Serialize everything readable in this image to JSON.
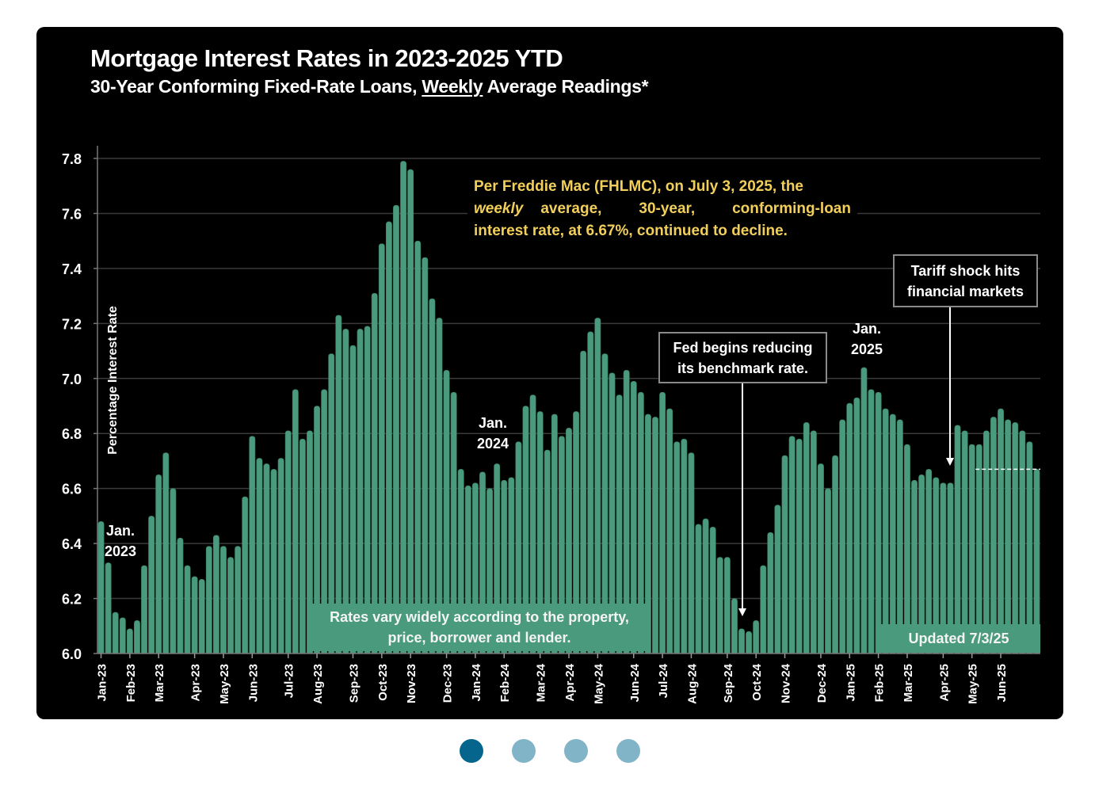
{
  "page": {
    "title": "Mortgage Interest Rates in 2023-2025 YTD",
    "subtitle_before": "30-Year Conforming Fixed-Rate Loans, ",
    "subtitle_underlined": "Weekly",
    "subtitle_after": " Average Readings*",
    "y_axis_label": "Percentage Interest Rate",
    "note": {
      "line1": "Per Freddie Mac (FHLMC), on July 3, 2025, the",
      "italic_word": "weekly",
      "line2_rest": " average, 30-year, conforming-loan",
      "line3": "interest rate, at 6.67%, continued to decline."
    },
    "callouts": {
      "fed": [
        "Fed begins reducing",
        "its benchmark rate."
      ],
      "tariff": [
        "Tariff shock hits",
        "financial markets"
      ]
    },
    "year_labels": {
      "y2023": [
        "Jan.",
        "2023"
      ],
      "y2024": [
        "Jan.",
        "2024"
      ],
      "y2025": [
        "Jan.",
        "2025"
      ]
    },
    "banner_rates": [
      "Rates vary widely according to the property,",
      "price, borrower and lender."
    ],
    "banner_updated": "Updated 7/3/25",
    "colors": {
      "bar": "#4a9a7e",
      "background": "#000000",
      "note_text": "#f2cf5b",
      "grid": "#3a3a3a",
      "dot_active": "#05658d",
      "dot_inactive": "#82b4c8"
    },
    "pagination": {
      "count": 4,
      "active_index": 0
    }
  },
  "chart_data": {
    "type": "bar",
    "title": "Mortgage Interest Rates in 2023-2025 YTD",
    "subtitle": "30-Year Conforming Fixed-Rate Loans, Weekly Average Readings*",
    "xlabel": "",
    "ylabel": "Percentage Interest Rate",
    "ylim": [
      6.0,
      7.8
    ],
    "yticks": [
      "6.0",
      "6.2",
      "6.4",
      "6.6",
      "6.8",
      "7.0",
      "7.2",
      "7.4",
      "7.6",
      "7.8"
    ],
    "grid": true,
    "legend": "none",
    "month_ticks": [
      {
        "label": "Jan-23",
        "week_index": 0
      },
      {
        "label": "Feb-23",
        "week_index": 4
      },
      {
        "label": "Mar-23",
        "week_index": 8
      },
      {
        "label": "Apr-23",
        "week_index": 13
      },
      {
        "label": "May-23",
        "week_index": 17
      },
      {
        "label": "Jun-23",
        "week_index": 21
      },
      {
        "label": "Jul-23",
        "week_index": 26
      },
      {
        "label": "Aug-23",
        "week_index": 30
      },
      {
        "label": "Sep-23",
        "week_index": 35
      },
      {
        "label": "Oct-23",
        "week_index": 39
      },
      {
        "label": "Nov-23",
        "week_index": 43
      },
      {
        "label": "Dec-23",
        "week_index": 48
      },
      {
        "label": "Jan-24",
        "week_index": 52
      },
      {
        "label": "Feb-24",
        "week_index": 56
      },
      {
        "label": "Mar-24",
        "week_index": 61
      },
      {
        "label": "Apr-24",
        "week_index": 65
      },
      {
        "label": "May-24",
        "week_index": 69
      },
      {
        "label": "Jun-24",
        "week_index": 74
      },
      {
        "label": "Jul-24",
        "week_index": 78
      },
      {
        "label": "Aug-24",
        "week_index": 82
      },
      {
        "label": "Sep-24",
        "week_index": 87
      },
      {
        "label": "Oct-24",
        "week_index": 91
      },
      {
        "label": "Nov-24",
        "week_index": 95
      },
      {
        "label": "Dec-24",
        "week_index": 100
      },
      {
        "label": "Jan-25",
        "week_index": 104
      },
      {
        "label": "Feb-25",
        "week_index": 108
      },
      {
        "label": "Mar-25",
        "week_index": 112
      },
      {
        "label": "Apr-25",
        "week_index": 117
      },
      {
        "label": "May-25",
        "week_index": 121
      },
      {
        "label": "Jun-25",
        "week_index": 125
      }
    ],
    "values": [
      6.48,
      6.33,
      6.15,
      6.13,
      6.09,
      6.12,
      6.32,
      6.5,
      6.65,
      6.73,
      6.6,
      6.42,
      6.32,
      6.28,
      6.27,
      6.39,
      6.43,
      6.39,
      6.35,
      6.39,
      6.57,
      6.79,
      6.71,
      6.69,
      6.67,
      6.71,
      6.81,
      6.96,
      6.78,
      6.81,
      6.9,
      6.96,
      7.09,
      7.23,
      7.18,
      7.12,
      7.18,
      7.19,
      7.31,
      7.49,
      7.57,
      7.63,
      7.79,
      7.76,
      7.5,
      7.44,
      7.29,
      7.22,
      7.03,
      6.95,
      6.67,
      6.61,
      6.62,
      6.66,
      6.6,
      6.69,
      6.63,
      6.64,
      6.77,
      6.9,
      6.94,
      6.88,
      6.74,
      6.87,
      6.79,
      6.82,
      6.88,
      7.1,
      7.17,
      7.22,
      7.09,
      7.02,
      6.94,
      7.03,
      6.99,
      6.95,
      6.87,
      6.86,
      6.95,
      6.89,
      6.77,
      6.78,
      6.73,
      6.47,
      6.49,
      6.46,
      6.35,
      6.35,
      6.2,
      6.09,
      6.08,
      6.12,
      6.32,
      6.44,
      6.54,
      6.72,
      6.79,
      6.78,
      6.84,
      6.81,
      6.69,
      6.6,
      6.72,
      6.85,
      6.91,
      6.93,
      7.04,
      6.96,
      6.95,
      6.89,
      6.87,
      6.85,
      6.76,
      6.63,
      6.65,
      6.67,
      6.64,
      6.62,
      6.62,
      6.83,
      6.81,
      6.76,
      6.76,
      6.81,
      6.86,
      6.89,
      6.85,
      6.84,
      6.81,
      6.77,
      6.67
    ],
    "reference_line": {
      "value": 6.67,
      "style": "dashed",
      "span": "latest weeks"
    },
    "annotations": [
      {
        "text": "Per Freddie Mac (FHLMC), on July 3, 2025, the weekly average, 30-year, conforming-loan interest rate, at 6.67%, continued to decline."
      },
      {
        "text": "Fed begins reducing its benchmark rate.",
        "week_index": 89
      },
      {
        "text": "Tariff shock hits financial markets",
        "week_index": 118
      },
      {
        "text": "Jan. 2023",
        "week_index": 0
      },
      {
        "text": "Jan. 2024",
        "week_index": 52
      },
      {
        "text": "Jan. 2025",
        "week_index": 104
      },
      {
        "text": "Rates vary widely according to the property, price, borrower and lender."
      },
      {
        "text": "Updated 7/3/25"
      }
    ]
  }
}
